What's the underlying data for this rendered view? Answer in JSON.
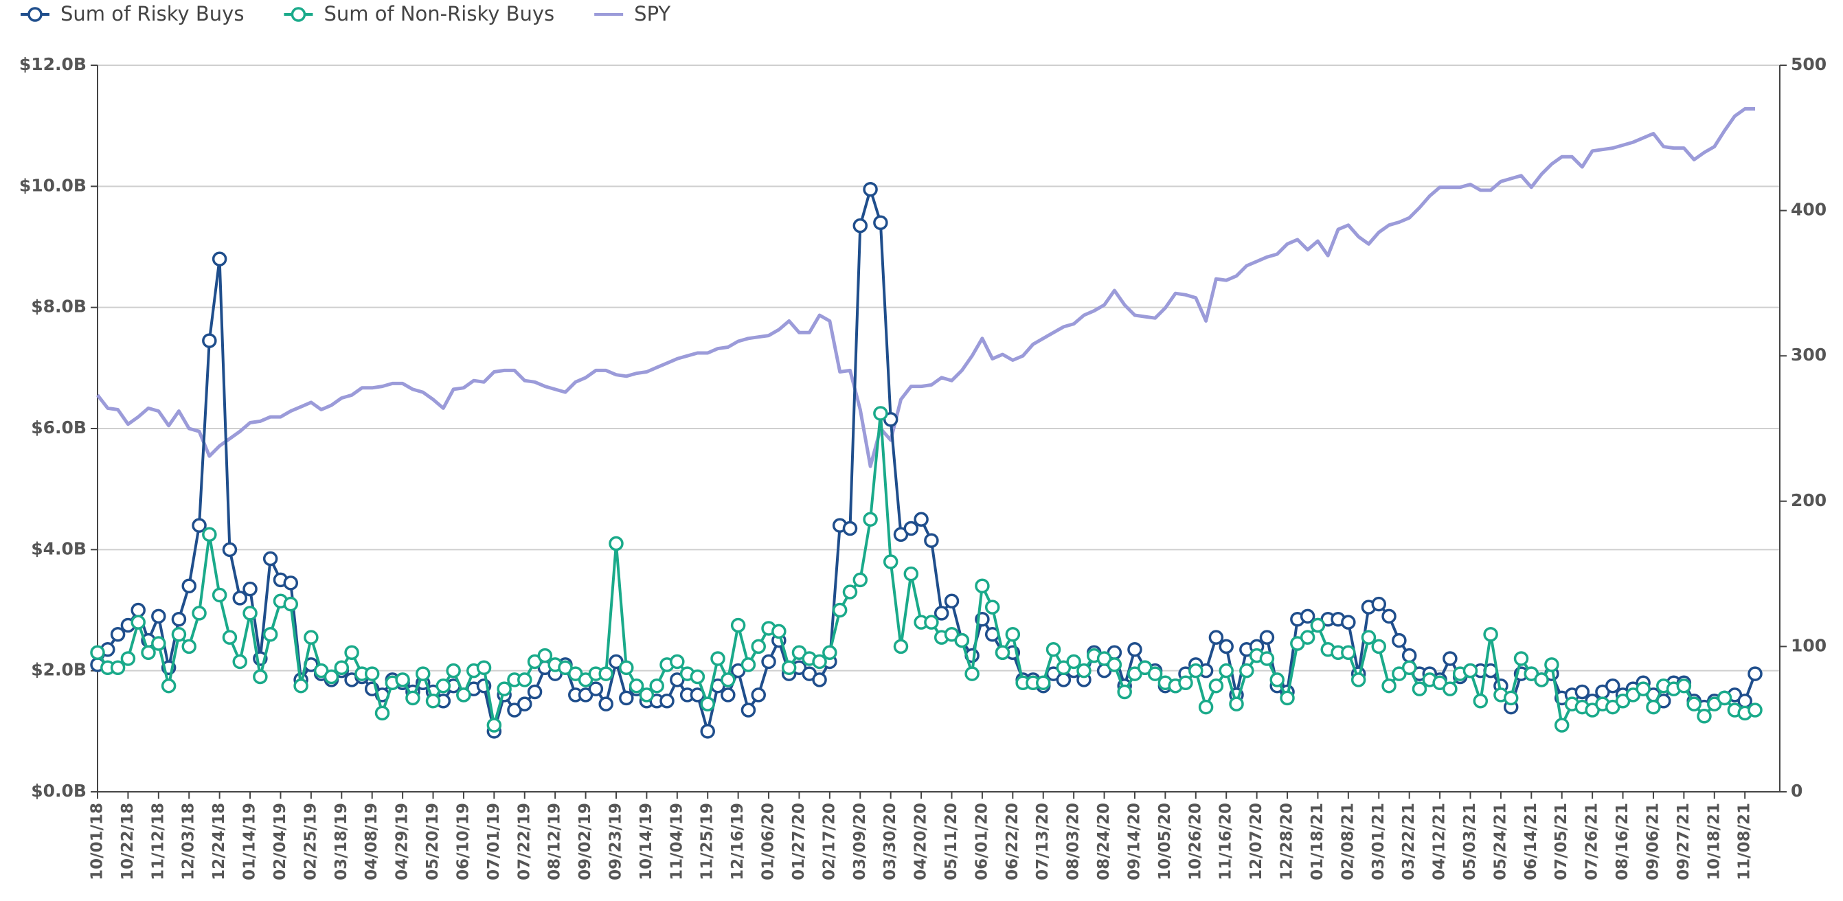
{
  "chart_data": {
    "type": "line",
    "categories": [
      "10/01/18",
      null,
      null,
      "10/22/18",
      null,
      null,
      "11/12/18",
      null,
      null,
      "12/03/18",
      null,
      null,
      "12/24/18",
      null,
      null,
      "01/14/19",
      null,
      null,
      "02/04/19",
      null,
      null,
      "02/25/19",
      null,
      null,
      "03/18/19",
      null,
      null,
      "04/08/19",
      null,
      null,
      "04/29/19",
      null,
      null,
      "05/20/19",
      null,
      null,
      "06/10/19",
      null,
      null,
      "07/01/19",
      null,
      null,
      "07/22/19",
      null,
      null,
      "08/12/19",
      null,
      null,
      "09/02/19",
      null,
      null,
      "09/23/19",
      null,
      null,
      "10/14/19",
      null,
      null,
      "11/04/19",
      null,
      null,
      "11/25/19",
      null,
      null,
      "12/16/19",
      null,
      null,
      "01/06/20",
      null,
      null,
      "01/27/20",
      null,
      null,
      "02/17/20",
      null,
      null,
      "03/09/20",
      null,
      null,
      "03/30/20",
      null,
      null,
      "04/20/20",
      null,
      null,
      "05/11/20",
      null,
      null,
      "06/01/20",
      null,
      null,
      "06/22/20",
      null,
      null,
      "07/13/20",
      null,
      null,
      "08/03/20",
      null,
      null,
      "08/24/20",
      null,
      null,
      "09/14/20",
      null,
      null,
      "10/05/20",
      null,
      null,
      "10/26/20",
      null,
      null,
      "11/16/20",
      null,
      null,
      "12/07/20",
      null,
      null,
      "12/28/20",
      null,
      null,
      "01/18/21",
      null,
      null,
      "02/08/21",
      null,
      null,
      "03/01/21",
      null,
      null,
      "03/22/21",
      null,
      null,
      "04/12/21",
      null,
      null,
      "05/03/21",
      null,
      null,
      "05/24/21",
      null,
      null,
      "06/14/21",
      null,
      null,
      "07/05/21",
      null,
      null,
      "07/26/21",
      null,
      null,
      "08/16/21",
      null,
      null,
      "09/06/21",
      null,
      null,
      "09/27/21",
      null,
      null,
      "10/18/21",
      null,
      null,
      "11/08/21",
      null
    ],
    "series": [
      {
        "name": "Sum of Risky Buys",
        "color": "#1f4e8c",
        "markers": true,
        "values": [
          2.1,
          2.35,
          2.6,
          2.75,
          3.0,
          2.5,
          2.9,
          2.05,
          2.85,
          3.4,
          4.4,
          7.45,
          8.8,
          4.0,
          3.2,
          3.35,
          2.2,
          3.85,
          3.5,
          3.45,
          1.85,
          2.1,
          1.95,
          1.85,
          2.0,
          1.85,
          1.9,
          1.7,
          1.6,
          1.85,
          1.8,
          1.65,
          1.8,
          1.65,
          1.5,
          1.75,
          1.6,
          1.7,
          1.75,
          1.0,
          1.6,
          1.35,
          1.45,
          1.65,
          2.05,
          1.95,
          2.1,
          1.6,
          1.6,
          1.7,
          1.45,
          2.15,
          1.55,
          1.7,
          1.5,
          1.5,
          1.5,
          1.85,
          1.6,
          1.6,
          1.0,
          1.75,
          1.6,
          2.0,
          1.35,
          1.6,
          2.15,
          2.5,
          1.95,
          2.05,
          1.95,
          1.85,
          2.15,
          4.4,
          4.35,
          9.35,
          9.95,
          9.4,
          6.15,
          4.25,
          4.35,
          4.5,
          4.15,
          2.95,
          3.15,
          2.5,
          2.25,
          2.85,
          2.6,
          2.3,
          2.3,
          1.85,
          1.85,
          1.75,
          1.95,
          1.85,
          2.0,
          1.85,
          2.3,
          2.0,
          2.3,
          1.75,
          2.35,
          2.05,
          2.0,
          1.75,
          1.75,
          1.95,
          2.1,
          2.0,
          2.55,
          2.4,
          1.6,
          2.35,
          2.4,
          2.55,
          1.75,
          1.65,
          2.85,
          2.9,
          2.75,
          2.85,
          2.85,
          2.8,
          1.95,
          3.05,
          3.1,
          2.9,
          2.5,
          2.25,
          1.95,
          1.95,
          1.85,
          2.2,
          1.9,
          2.0,
          2.0,
          2.0,
          1.75,
          1.4,
          1.95,
          1.95,
          1.85,
          1.95,
          1.55,
          1.6,
          1.65,
          1.5,
          1.65,
          1.75,
          1.6,
          1.7,
          1.8,
          1.6,
          1.5,
          1.8,
          1.8,
          1.5,
          1.4,
          1.5,
          1.55,
          1.6,
          1.5,
          1.95
        ]
      },
      {
        "name": "Sum of Non-Risky Buys",
        "color": "#1aaa8a",
        "markers": true,
        "values": [
          2.3,
          2.05,
          2.05,
          2.2,
          2.8,
          2.3,
          2.45,
          1.75,
          2.6,
          2.4,
          2.95,
          4.25,
          3.25,
          2.55,
          2.15,
          2.95,
          1.9,
          2.6,
          3.15,
          3.1,
          1.75,
          2.55,
          2.0,
          1.9,
          2.05,
          2.3,
          1.95,
          1.95,
          1.3,
          1.8,
          1.85,
          1.55,
          1.95,
          1.5,
          1.75,
          2.0,
          1.6,
          2.0,
          2.05,
          1.1,
          1.7,
          1.85,
          1.85,
          2.15,
          2.25,
          2.1,
          2.05,
          1.95,
          1.85,
          1.95,
          1.95,
          4.1,
          2.05,
          1.75,
          1.6,
          1.75,
          2.1,
          2.15,
          1.95,
          1.9,
          1.45,
          2.2,
          1.85,
          2.75,
          2.1,
          2.4,
          2.7,
          2.65,
          2.05,
          2.3,
          2.2,
          2.15,
          2.3,
          3.0,
          3.3,
          3.5,
          4.5,
          6.25,
          3.8,
          2.4,
          3.6,
          2.8,
          2.8,
          2.55,
          2.6,
          2.5,
          1.95,
          3.4,
          3.05,
          2.3,
          2.6,
          1.8,
          1.8,
          1.8,
          2.35,
          2.05,
          2.15,
          2.0,
          2.25,
          2.2,
          2.1,
          1.65,
          1.95,
          2.05,
          1.95,
          1.8,
          1.75,
          1.8,
          2.0,
          1.4,
          1.75,
          2.0,
          1.45,
          2.0,
          2.25,
          2.2,
          1.85,
          1.55,
          2.45,
          2.55,
          2.75,
          2.35,
          2.3,
          2.3,
          1.85,
          2.55,
          2.4,
          1.75,
          1.95,
          2.05,
          1.7,
          1.85,
          1.8,
          1.7,
          1.95,
          2.0,
          1.5,
          2.6,
          1.6,
          1.55,
          2.2,
          1.95,
          1.85,
          2.1,
          1.1,
          1.45,
          1.4,
          1.35,
          1.45,
          1.4,
          1.5,
          1.6,
          1.7,
          1.4,
          1.75,
          1.7,
          1.75,
          1.45,
          1.25,
          1.45,
          1.55,
          1.35,
          1.3,
          1.35
        ]
      },
      {
        "name": "SPY",
        "color": "#9b9bd9",
        "markers": false,
        "axis": "y2",
        "values": [
          273,
          264,
          263,
          253,
          258,
          264,
          262,
          252,
          262,
          250,
          248,
          231,
          238,
          243,
          248,
          254,
          255,
          258,
          258,
          262,
          265,
          268,
          263,
          266,
          271,
          273,
          278,
          278,
          279,
          281,
          281,
          277,
          275,
          270,
          264,
          277,
          278,
          283,
          282,
          289,
          290,
          290,
          283,
          282,
          279,
          277,
          275,
          282,
          285,
          290,
          290,
          287,
          286,
          288,
          289,
          292,
          295,
          298,
          300,
          302,
          302,
          305,
          306,
          310,
          312,
          313,
          314,
          318,
          324,
          316,
          316,
          328,
          324,
          289,
          290,
          263,
          224,
          250,
          242,
          270,
          279,
          279,
          280,
          285,
          283,
          290,
          300,
          312,
          298,
          301,
          297,
          300,
          308,
          312,
          316,
          320,
          322,
          328,
          331,
          335,
          345,
          335,
          328,
          327,
          326,
          333,
          343,
          342,
          340,
          324,
          353,
          352,
          355,
          362,
          365,
          368,
          370,
          377,
          380,
          373,
          379,
          369,
          387,
          390,
          382,
          377,
          385,
          390,
          392,
          395,
          402,
          410,
          416,
          416,
          416,
          418,
          414,
          414,
          420,
          422,
          424,
          416,
          425,
          432,
          437,
          437,
          430,
          441,
          442,
          443,
          445,
          447,
          450,
          453,
          444,
          443,
          443,
          435,
          440,
          444,
          455,
          465,
          470,
          470
        ]
      }
    ],
    "ylim": [
      0,
      12
    ],
    "yticks": [
      {
        "value": 0,
        "label": "$0.0B"
      },
      {
        "value": 2,
        "label": "$2.0B"
      },
      {
        "value": 4,
        "label": "$4.0B"
      },
      {
        "value": 6,
        "label": "$6.0B"
      },
      {
        "value": 8,
        "label": "$8.0B"
      },
      {
        "value": 10,
        "label": "$10.0B"
      },
      {
        "value": 12,
        "label": "$12.0B"
      }
    ],
    "y2lim": [
      0,
      500
    ],
    "y2ticks": [
      0,
      100,
      200,
      300,
      400,
      500
    ],
    "grid": true,
    "legend": "top-left"
  }
}
